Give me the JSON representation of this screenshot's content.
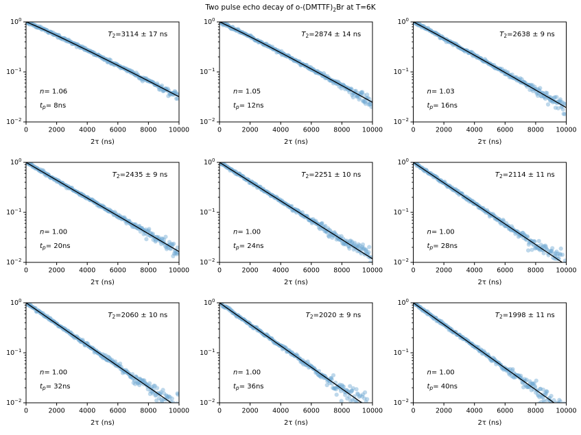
{
  "figure_title": {
    "pre": "Two pulse echo decay of o-(DMTTF)",
    "sub": "2",
    "post": "Br at T=6K"
  },
  "chart_data": {
    "type": "scatter",
    "title": "Two pulse echo decay of o-(DMTTF)2Br at T=6K",
    "grid": {
      "rows": 3,
      "cols": 3
    },
    "xlabel": "2τ (ns)",
    "xlim": [
      0,
      10000
    ],
    "xticks": [
      0,
      2000,
      4000,
      6000,
      8000,
      10000
    ],
    "xtick_labels": [
      "0",
      "2000",
      "4000",
      "6000",
      "8000",
      "10000"
    ],
    "yscale": "log",
    "ylim": [
      0.01,
      1.0
    ],
    "ytick_values": [
      1,
      0.1,
      0.01
    ],
    "ytick_labels": [
      {
        "base": "10",
        "exp": "0"
      },
      {
        "base": "10",
        "exp": "−1"
      },
      {
        "base": "10",
        "exp": "−2"
      }
    ],
    "model": "I(2τ) = exp(−(2τ/T2)^n)",
    "legend": null,
    "style": {
      "point_color": "#6fa8d2",
      "point_opacity": 0.45,
      "line_color": "#000000",
      "axis_color": "#000000",
      "background": "#ffffff"
    },
    "symbols": {
      "T2_base": "T",
      "T2_sub": "2",
      "n_base": "n",
      "tp_base": "t",
      "tp_sub": "p"
    },
    "subplots": [
      {
        "T2_ns": 3114,
        "T2_err_ns": 17,
        "n": 1.06,
        "tp_ns": 8,
        "t2_text": "=3114 ± 17 ns",
        "n_text": "= 1.06",
        "tp_text": "= 8ns"
      },
      {
        "T2_ns": 2874,
        "T2_err_ns": 14,
        "n": 1.05,
        "tp_ns": 12,
        "t2_text": "=2874 ± 14 ns",
        "n_text": "= 1.05",
        "tp_text": "= 12ns"
      },
      {
        "T2_ns": 2638,
        "T2_err_ns": 9,
        "n": 1.03,
        "tp_ns": 16,
        "t2_text": "=2638 ± 9 ns",
        "n_text": "= 1.03",
        "tp_text": "= 16ns"
      },
      {
        "T2_ns": 2435,
        "T2_err_ns": 9,
        "n": 1.0,
        "tp_ns": 20,
        "t2_text": "=2435 ± 9 ns",
        "n_text": "= 1.00",
        "tp_text": "= 20ns"
      },
      {
        "T2_ns": 2251,
        "T2_err_ns": 10,
        "n": 1.0,
        "tp_ns": 24,
        "t2_text": "=2251 ± 10 ns",
        "n_text": "= 1.00",
        "tp_text": "= 24ns"
      },
      {
        "T2_ns": 2114,
        "T2_err_ns": 11,
        "n": 1.0,
        "tp_ns": 28,
        "t2_text": "=2114 ± 11 ns",
        "n_text": "= 1.00",
        "tp_text": "= 28ns"
      },
      {
        "T2_ns": 2060,
        "T2_err_ns": 10,
        "n": 1.0,
        "tp_ns": 32,
        "t2_text": "=2060 ± 10 ns",
        "n_text": "= 1.00",
        "tp_text": "= 32ns"
      },
      {
        "T2_ns": 2020,
        "T2_err_ns": 9,
        "n": 1.0,
        "tp_ns": 36,
        "t2_text": "=2020 ± 9 ns",
        "n_text": "= 1.00",
        "tp_text": "= 36ns"
      },
      {
        "T2_ns": 1998,
        "T2_err_ns": 11,
        "n": 1.0,
        "tp_ns": 40,
        "t2_text": "=1998 ± 11 ns",
        "n_text": "= 1.00",
        "tp_text": "= 40ns"
      }
    ]
  }
}
